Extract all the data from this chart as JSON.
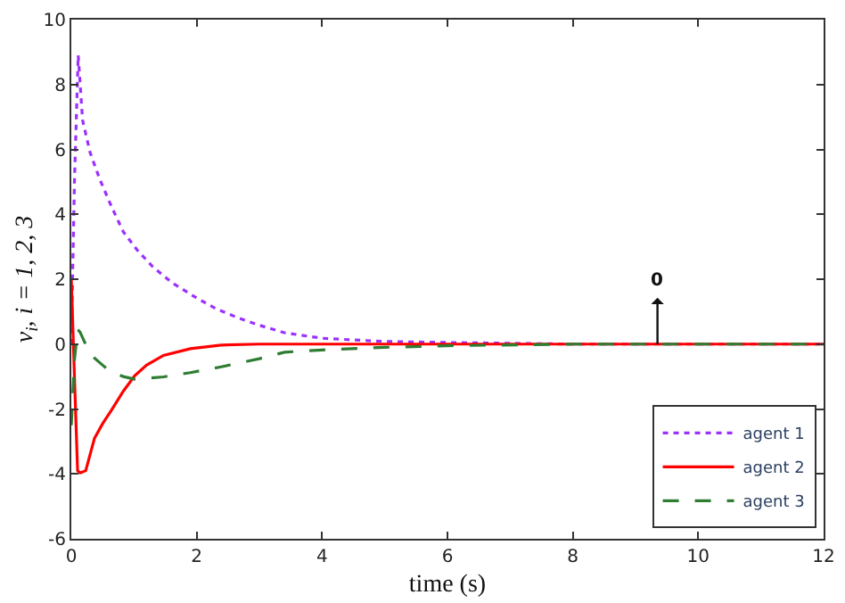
{
  "chart_data": {
    "type": "line",
    "xlabel": "time (s)",
    "ylabel": "v$_{i}$, i = 1, 2, 3",
    "xlim": [
      0,
      12
    ],
    "ylim": [
      -6,
      10
    ],
    "xticks": [
      0,
      2,
      4,
      6,
      8,
      10,
      12
    ],
    "yticks": [
      -6,
      -4,
      -2,
      0,
      2,
      4,
      6,
      8,
      10
    ],
    "grid": false,
    "legend": "bottom right",
    "marker": "none",
    "series": [
      {
        "name": "agent 1",
        "color": "#9b30ff",
        "line_style": "dotted",
        "x": [
          0,
          0.05,
          0.11,
          0.18,
          0.3,
          0.46,
          0.65,
          0.83,
          1.05,
          1.29,
          1.6,
          2.0,
          2.3,
          2.67,
          3.0,
          3.4,
          4.0,
          5.0,
          6.0,
          8.0,
          10.0,
          12.0
        ],
        "values": [
          0,
          5,
          8.9,
          6.9,
          5.9,
          5.05,
          4.2,
          3.46,
          2.9,
          2.4,
          1.9,
          1.42,
          1.1,
          0.8,
          0.58,
          0.35,
          0.18,
          0.08,
          0.05,
          0,
          0,
          0
        ]
      },
      {
        "name": "agent 2",
        "color": "#ff0000",
        "line_style": "solid",
        "x": [
          0,
          0.05,
          0.1,
          0.14,
          0.23,
          0.37,
          0.5,
          0.64,
          0.83,
          1.01,
          1.2,
          1.47,
          1.9,
          2.39,
          3.0,
          4.0,
          6.0,
          8.0,
          10.0,
          12.0
        ],
        "values": [
          2,
          -1,
          -3.9,
          -3.97,
          -3.9,
          -2.9,
          -2.45,
          -2.04,
          -1.45,
          -0.98,
          -0.65,
          -0.35,
          -0.14,
          -0.03,
          0,
          0,
          0,
          0,
          0,
          0
        ]
      },
      {
        "name": "agent 3",
        "color": "#2e7d32",
        "line_style": "dashed",
        "x": [
          0,
          0.05,
          0.1,
          0.14,
          0.25,
          0.37,
          0.5,
          0.64,
          0.83,
          1.01,
          1.47,
          1.9,
          2.39,
          3.0,
          3.4,
          4.0,
          5.0,
          6.0,
          8.0,
          10.0,
          12.0
        ],
        "values": [
          -2.5,
          -0.5,
          0.45,
          0.37,
          -0.1,
          -0.43,
          -0.65,
          -0.87,
          -1.0,
          -1.08,
          -1.01,
          -0.88,
          -0.7,
          -0.45,
          -0.25,
          -0.18,
          -0.1,
          -0.05,
          0,
          0,
          0
        ]
      }
    ],
    "annotations": [
      {
        "text": "0",
        "x": 9.35,
        "y": 0
      }
    ]
  }
}
